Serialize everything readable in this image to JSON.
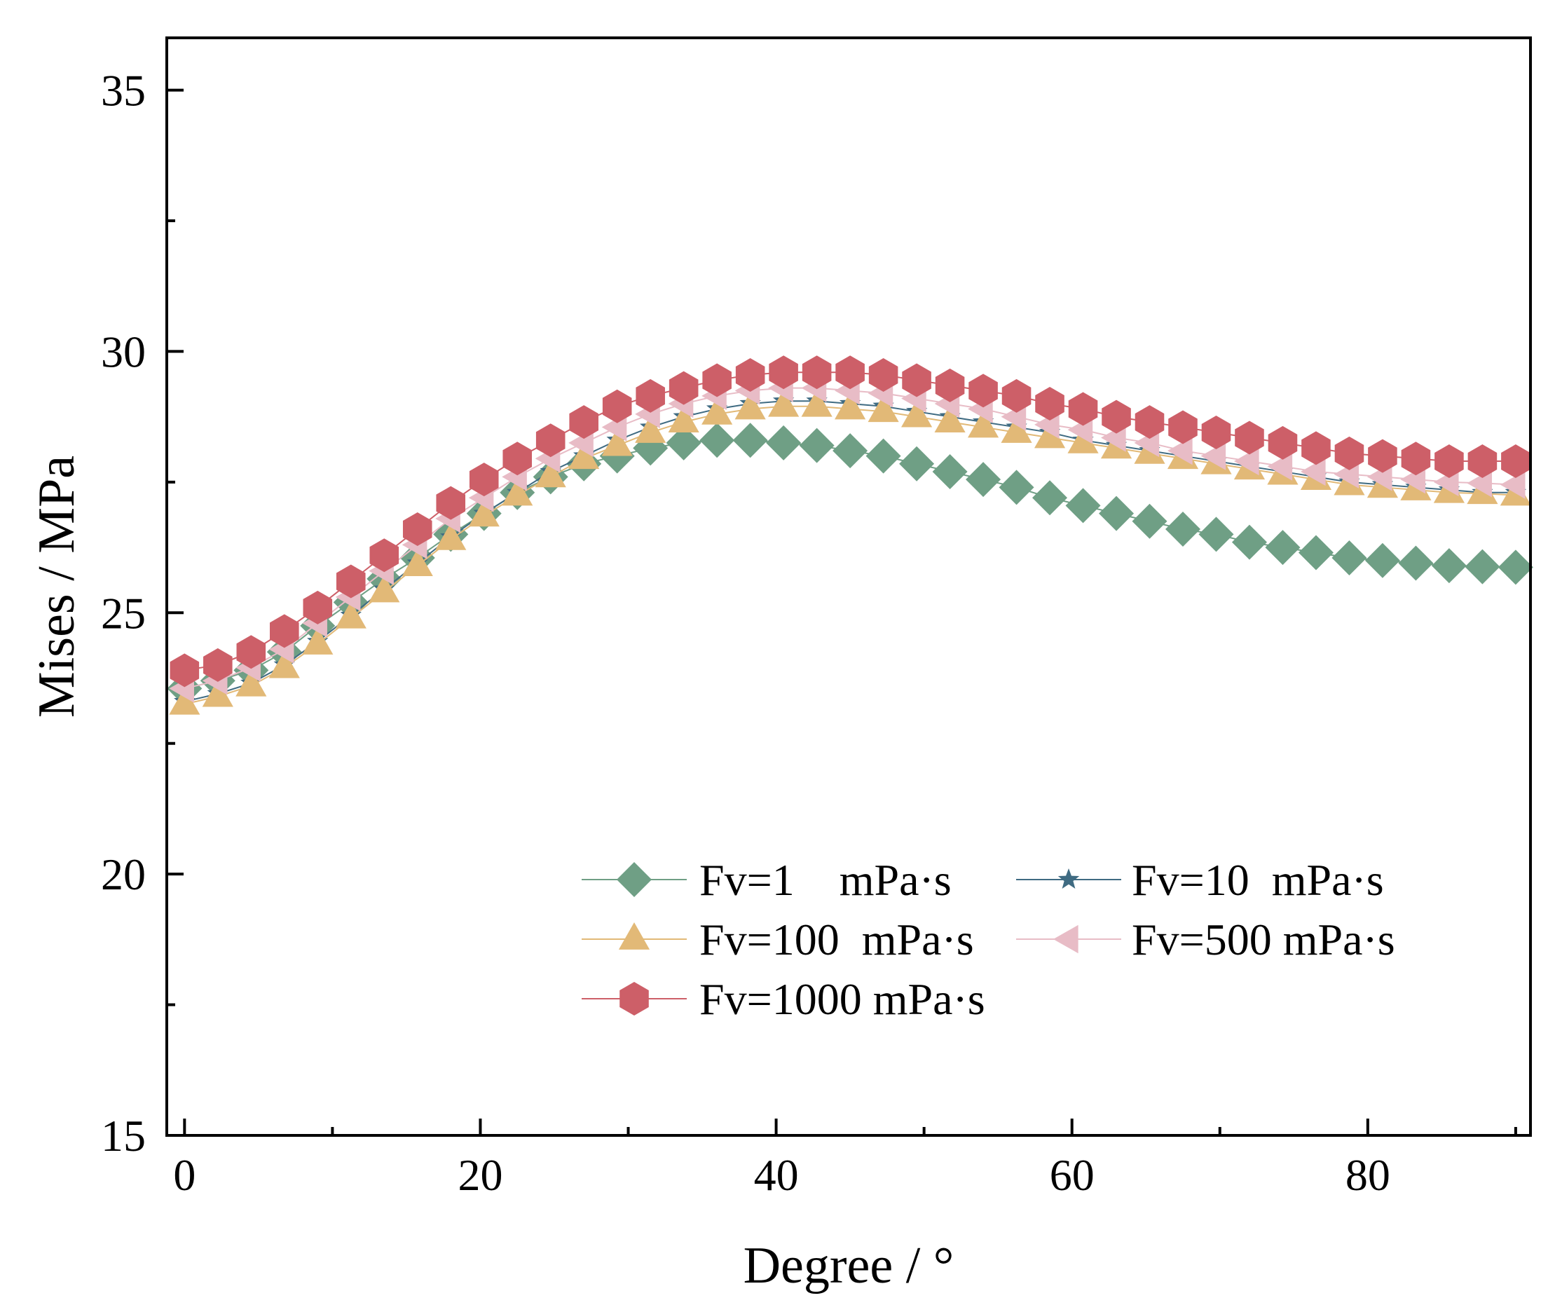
{
  "chart_data": {
    "type": "line",
    "title": "",
    "xlabel": "Degree / °",
    "ylabel": "Mises / MPa",
    "xlim": [
      -1.2,
      91
    ],
    "ylim": [
      15,
      36
    ],
    "xticks": [
      0,
      20,
      40,
      60,
      80
    ],
    "yticks": [
      15,
      20,
      25,
      30,
      35
    ],
    "legend_position": "bottom-right",
    "x": [
      0,
      2.25,
      4.5,
      6.75,
      9,
      11.25,
      13.5,
      15.75,
      18,
      20.25,
      22.5,
      24.75,
      27,
      29.25,
      31.5,
      33.75,
      36,
      38.25,
      40.5,
      42.75,
      45,
      47.25,
      49.5,
      51.75,
      54,
      56.25,
      58.5,
      60.75,
      63,
      65.25,
      67.5,
      69.75,
      72,
      74.25,
      76.5,
      78.75,
      81,
      83.25,
      85.5,
      87.75,
      90
    ],
    "series": [
      {
        "name": "Fv=1    mPa·s",
        "color": "#6f9f85",
        "marker": "diamond",
        "values": [
          23.55,
          23.7,
          23.9,
          24.25,
          24.75,
          25.2,
          25.65,
          26.05,
          26.5,
          26.9,
          27.3,
          27.6,
          27.85,
          28.0,
          28.15,
          28.25,
          28.3,
          28.3,
          28.25,
          28.2,
          28.1,
          28.0,
          27.85,
          27.7,
          27.55,
          27.4,
          27.2,
          27.05,
          26.9,
          26.75,
          26.6,
          26.5,
          26.35,
          26.25,
          26.15,
          26.05,
          26.0,
          25.95,
          25.9,
          25.88,
          25.87
        ]
      },
      {
        "name": "Fv=10  mPa·s",
        "color": "#3f6b82",
        "marker": "star",
        "values": [
          23.3,
          23.45,
          23.65,
          24.0,
          24.45,
          24.95,
          25.45,
          25.95,
          26.45,
          26.9,
          27.3,
          27.7,
          28.0,
          28.3,
          28.55,
          28.75,
          28.9,
          29.0,
          29.05,
          29.05,
          29.0,
          28.95,
          28.85,
          28.75,
          28.65,
          28.55,
          28.45,
          28.3,
          28.2,
          28.1,
          28.0,
          27.9,
          27.8,
          27.7,
          27.6,
          27.5,
          27.45,
          27.4,
          27.35,
          27.3,
          27.3
        ]
      },
      {
        "name": "Fv=100  mPa·s",
        "color": "#e2b977",
        "marker": "triangle",
        "values": [
          23.25,
          23.4,
          23.6,
          23.95,
          24.4,
          24.9,
          25.4,
          25.9,
          26.4,
          26.85,
          27.25,
          27.6,
          27.95,
          28.2,
          28.45,
          28.65,
          28.8,
          28.9,
          28.95,
          28.95,
          28.9,
          28.85,
          28.75,
          28.65,
          28.55,
          28.45,
          28.35,
          28.25,
          28.15,
          28.05,
          27.95,
          27.85,
          27.75,
          27.65,
          27.55,
          27.45,
          27.4,
          27.35,
          27.3,
          27.28,
          27.25
        ]
      },
      {
        "name": "Fv=500 mPa·s",
        "color": "#e8bcc6",
        "marker": "triangle-left",
        "values": [
          23.55,
          23.7,
          23.95,
          24.3,
          24.8,
          25.3,
          25.8,
          26.3,
          26.8,
          27.2,
          27.6,
          27.95,
          28.25,
          28.55,
          28.8,
          29.0,
          29.15,
          29.25,
          29.3,
          29.3,
          29.25,
          29.2,
          29.1,
          29.0,
          28.9,
          28.75,
          28.6,
          28.5,
          28.35,
          28.25,
          28.1,
          28.0,
          27.9,
          27.8,
          27.7,
          27.65,
          27.6,
          27.55,
          27.5,
          27.48,
          27.45
        ]
      },
      {
        "name": "Fv=1000 mPa·s",
        "color": "#cd5f68",
        "marker": "hexagon",
        "values": [
          23.9,
          24.0,
          24.25,
          24.65,
          25.1,
          25.6,
          26.1,
          26.6,
          27.1,
          27.55,
          27.95,
          28.3,
          28.65,
          28.95,
          29.15,
          29.3,
          29.45,
          29.55,
          29.6,
          29.6,
          29.6,
          29.55,
          29.45,
          29.35,
          29.25,
          29.15,
          29.0,
          28.9,
          28.75,
          28.65,
          28.55,
          28.45,
          28.35,
          28.25,
          28.15,
          28.05,
          28.0,
          27.95,
          27.9,
          27.9,
          27.9
        ]
      }
    ]
  }
}
